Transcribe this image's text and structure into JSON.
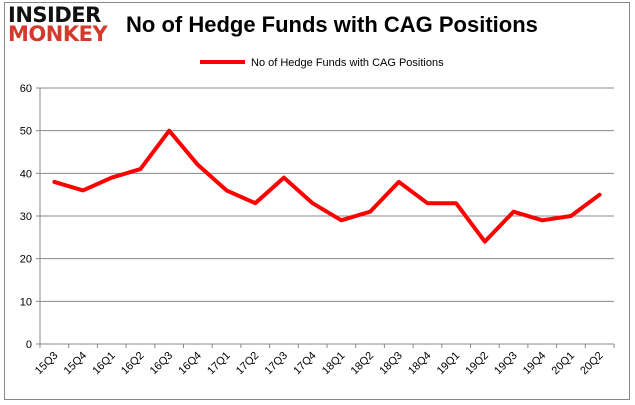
{
  "logo": {
    "line1": "INSIDER",
    "line2": "MONKEY"
  },
  "chart_data": {
    "type": "line",
    "title": "No of Hedge Funds with CAG Positions",
    "categories": [
      "15Q3",
      "15Q4",
      "16Q1",
      "16Q2",
      "16Q3",
      "16Q4",
      "17Q1",
      "17Q2",
      "17Q3",
      "17Q4",
      "18Q1",
      "18Q2",
      "18Q3",
      "18Q4",
      "19Q1",
      "19Q2",
      "19Q3",
      "19Q4",
      "20Q1",
      "20Q2"
    ],
    "series": [
      {
        "name": "No of Hedge Funds with CAG Positions",
        "color": "#ff0000",
        "values": [
          38,
          36,
          39,
          41,
          50,
          42,
          36,
          33,
          39,
          33,
          29,
          31,
          38,
          33,
          33,
          24,
          31,
          29,
          30,
          35
        ]
      }
    ],
    "ylim": [
      0,
      60
    ],
    "yticks": [
      0,
      10,
      20,
      30,
      40,
      50,
      60
    ],
    "grid": true,
    "legend": "top-center"
  }
}
